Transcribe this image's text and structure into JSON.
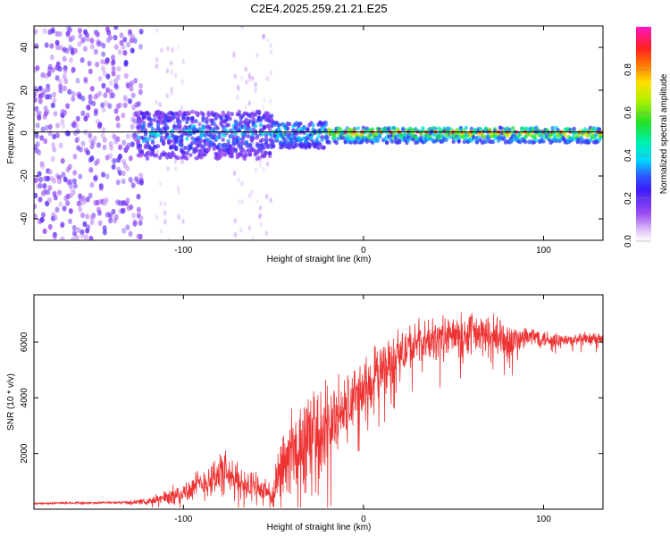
{
  "title": "C2E4.2025.259.21.21.E25",
  "chart_data": [
    {
      "type": "heatmap",
      "title": "C2E4.2025.259.21.21.E25",
      "xlabel": "Height of straight line (km)",
      "ylabel": "Frequency (Hz)",
      "xlim": [
        -183,
        133
      ],
      "ylim": [
        -50,
        50
      ],
      "xticks": [
        "-100",
        "0",
        "100"
      ],
      "yticks": [
        "-40",
        "-20",
        "0",
        "20",
        "40"
      ],
      "colorbar": {
        "label": "Normalized spectral amplitude",
        "ticks": [
          "0.0",
          "0.2",
          "0.4",
          "0.6",
          "0.8"
        ],
        "range": [
          0,
          1
        ],
        "colormap": "rainbow"
      },
      "line": {
        "x": [
          -183,
          133
        ],
        "y": [
          0.5,
          0.5
        ],
        "color": "#000000"
      },
      "description_regions": [
        {
          "x_range": [
            -183,
            -125
          ],
          "frequency_range": [
            -50,
            50
          ],
          "amplitude": [
            0.05,
            0.25
          ]
        },
        {
          "x_range": [
            -125,
            -50
          ],
          "frequency_range": [
            -12,
            12
          ],
          "amplitude": [
            0.1,
            0.5
          ]
        },
        {
          "x_range": [
            -50,
            133
          ],
          "frequency_range": [
            -4,
            4
          ],
          "amplitude": [
            0.2,
            0.85
          ]
        }
      ]
    },
    {
      "type": "line",
      "xlabel": "Height of straight line (km)",
      "ylabel": "SNR (10 * v/v)",
      "xlim": [
        -183,
        133
      ],
      "ylim": [
        0,
        7700
      ],
      "xticks": [
        "-100",
        "0",
        "100"
      ],
      "yticks": [
        "2000",
        "4000",
        "6000"
      ],
      "color": "#ee3333",
      "x": [
        -183,
        -170,
        -160,
        -150,
        -140,
        -130,
        -120,
        -110,
        -100,
        -95,
        -90,
        -85,
        -80,
        -75,
        -70,
        -65,
        -60,
        -55,
        -50,
        -45,
        -40,
        -35,
        -30,
        -25,
        -20,
        -15,
        -10,
        -5,
        0,
        5,
        10,
        15,
        20,
        25,
        30,
        35,
        40,
        45,
        50,
        55,
        60,
        65,
        70,
        75,
        80,
        85,
        90,
        95,
        100,
        105,
        110,
        115,
        120,
        125,
        133
      ],
      "values": [
        200,
        220,
        230,
        220,
        240,
        250,
        280,
        400,
        600,
        750,
        900,
        1100,
        1300,
        1200,
        1000,
        900,
        800,
        700,
        400,
        1500,
        2000,
        2200,
        2500,
        2600,
        3000,
        3300,
        3600,
        4000,
        4300,
        4700,
        5000,
        5300,
        5600,
        5800,
        5900,
        6000,
        6100,
        6150,
        6200,
        6250,
        6300,
        6250,
        6200,
        6100,
        6050,
        6100,
        6150,
        6200,
        6150,
        6100,
        6050,
        6050,
        6100,
        6100,
        6100
      ],
      "noise": [
        30,
        40,
        40,
        40,
        40,
        50,
        120,
        300,
        400,
        500,
        600,
        700,
        900,
        800,
        650,
        600,
        500,
        450,
        600,
        1400,
        1600,
        1700,
        1900,
        1800,
        1600,
        1400,
        1300,
        1200,
        1100,
        1100,
        1000,
        1000,
        950,
        900,
        900,
        850,
        800,
        800,
        800,
        800,
        850,
        800,
        700,
        900,
        700,
        550,
        450,
        400,
        350,
        300,
        300,
        250,
        250,
        250,
        250
      ]
    }
  ]
}
